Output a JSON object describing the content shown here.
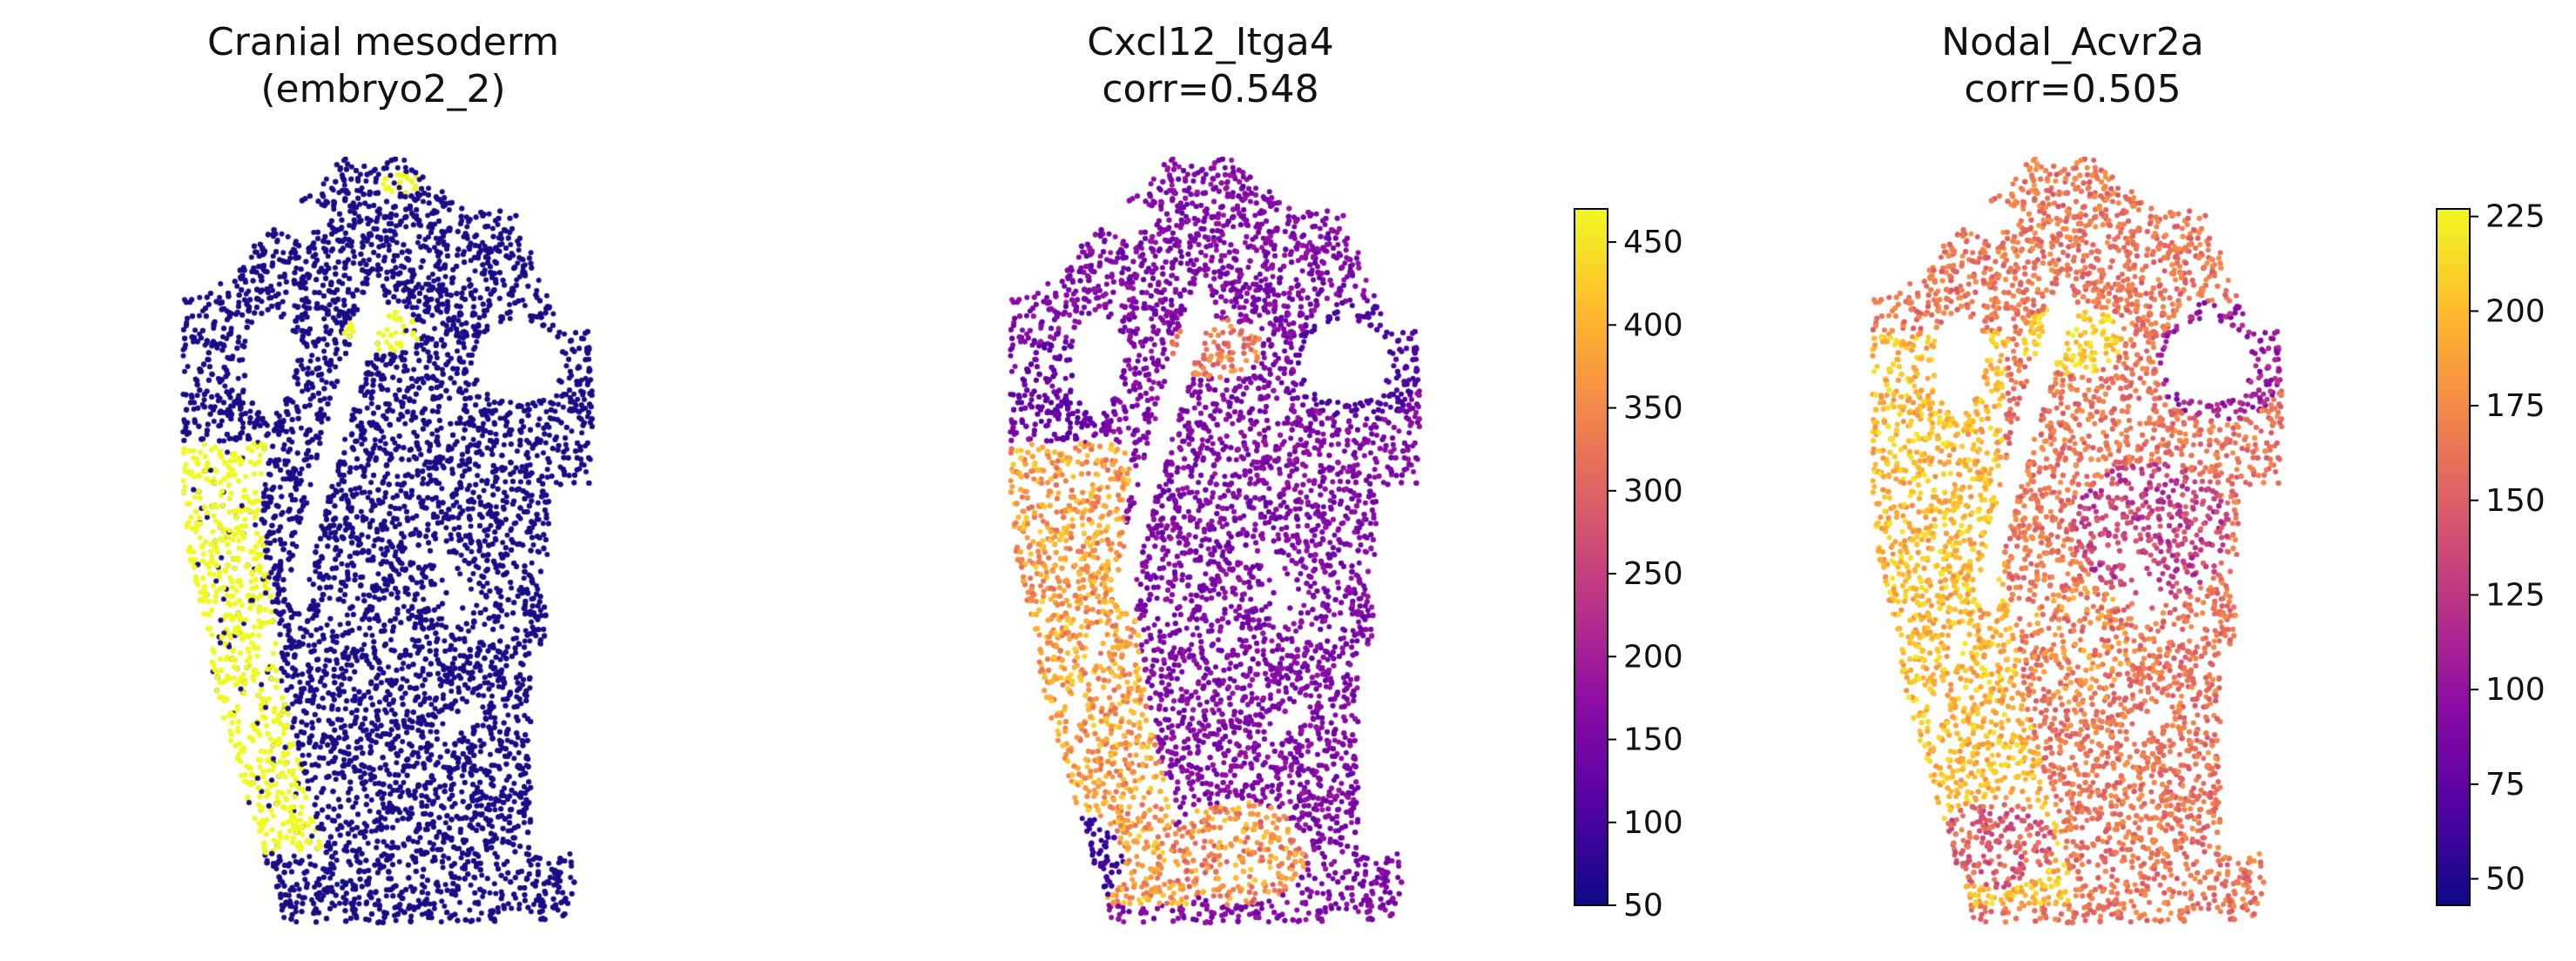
{
  "chart_data": [
    {
      "type": "scatter",
      "subtype": "spatial-transcriptomics-categorical",
      "title": [
        "Cranial mesoderm",
        "(embryo2_2)"
      ],
      "colors": {
        "background_cells": "#1a0c86",
        "highlighted_cells": "#f0f921"
      },
      "axes": "off",
      "highlighted_region": "cranial mesoderm cells form a band along the left edge of the tissue and a patch near the upper center"
    },
    {
      "type": "scatter",
      "subtype": "spatial-transcriptomics-continuous",
      "title": [
        "Cxcl12_Itga4",
        "corr=0.548"
      ],
      "colormap": "plasma",
      "colorbar": {
        "min": 50,
        "max": 470,
        "ticks": [
          50,
          100,
          150,
          200,
          250,
          300,
          350,
          400,
          450
        ]
      },
      "axes": "off"
    },
    {
      "type": "scatter",
      "subtype": "spatial-transcriptomics-continuous",
      "title": [
        "Nodal_Acvr2a",
        "corr=0.505"
      ],
      "colormap": "plasma",
      "colorbar": {
        "min": 43,
        "max": 227,
        "ticks": [
          50,
          75,
          100,
          125,
          150,
          175,
          200,
          225
        ]
      },
      "axes": "off"
    }
  ]
}
